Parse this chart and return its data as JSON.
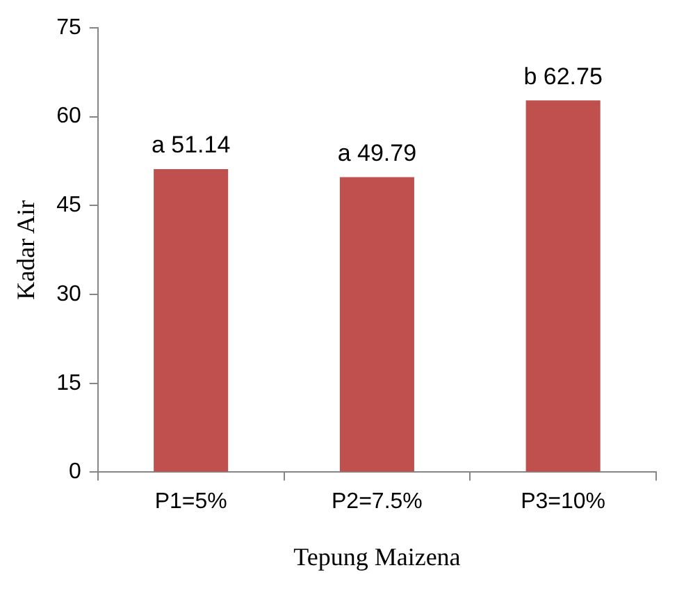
{
  "chart_data": {
    "type": "bar",
    "xlabel": "Tepung Maizena",
    "ylabel": "Kadar Air",
    "categories": [
      "P1=5%",
      "P2=7.5%",
      "P3=10%"
    ],
    "values": [
      51.14,
      49.79,
      62.75
    ],
    "value_labels": [
      "a 51.14",
      "a 49.79",
      "b 62.75"
    ],
    "color": "#c0504d",
    "ylim": [
      0,
      75
    ],
    "yticks": [
      0,
      15,
      30,
      45,
      60,
      75
    ],
    "grid": false,
    "legend": false
  }
}
